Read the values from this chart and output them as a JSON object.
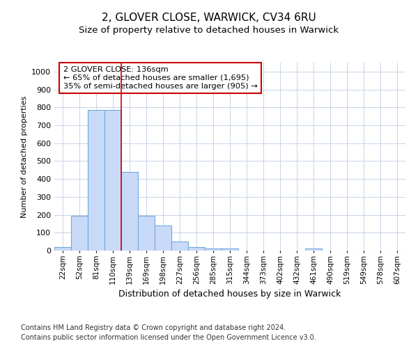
{
  "title1": "2, GLOVER CLOSE, WARWICK, CV34 6RU",
  "title2": "Size of property relative to detached houses in Warwick",
  "xlabel": "Distribution of detached houses by size in Warwick",
  "ylabel": "Number of detached properties",
  "categories": [
    "22sqm",
    "52sqm",
    "81sqm",
    "110sqm",
    "139sqm",
    "169sqm",
    "198sqm",
    "227sqm",
    "256sqm",
    "285sqm",
    "315sqm",
    "344sqm",
    "373sqm",
    "402sqm",
    "432sqm",
    "461sqm",
    "490sqm",
    "519sqm",
    "549sqm",
    "578sqm",
    "607sqm"
  ],
  "values": [
    20,
    195,
    785,
    785,
    440,
    195,
    140,
    50,
    20,
    10,
    10,
    0,
    0,
    0,
    0,
    10,
    0,
    0,
    0,
    0,
    0
  ],
  "bar_color": "#c9daf8",
  "bar_edge_color": "#6fa8dc",
  "grid_color": "#c8d4e8",
  "annotation_text": "2 GLOVER CLOSE: 136sqm\n← 65% of detached houses are smaller (1,695)\n35% of semi-detached houses are larger (905) →",
  "annotation_box_color": "#ffffff",
  "annotation_box_edge_color": "#cc0000",
  "vline_x_index": 3.5,
  "vline_color": "#cc0000",
  "ylim": [
    0,
    1050
  ],
  "yticks": [
    0,
    100,
    200,
    300,
    400,
    500,
    600,
    700,
    800,
    900,
    1000
  ],
  "footer1": "Contains HM Land Registry data © Crown copyright and database right 2024.",
  "footer2": "Contains public sector information licensed under the Open Government Licence v3.0.",
  "background_color": "#ffffff"
}
